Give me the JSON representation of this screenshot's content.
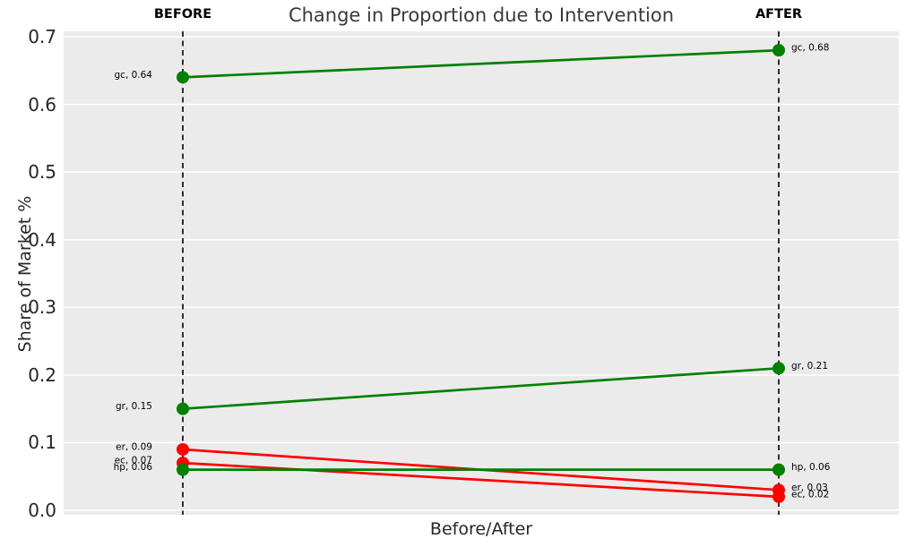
{
  "chart_data": {
    "type": "line",
    "variant": "slopegraph",
    "title": "Change in Proportion due to Intervention",
    "xlabel": "Before/After",
    "ylabel": "Share of Market %",
    "columns": [
      {
        "label": "BEFORE"
      },
      {
        "label": "AFTER"
      }
    ],
    "ylim": [
      0.0,
      0.7
    ],
    "yticks": [
      {
        "value": 0.0,
        "label": "0.0"
      },
      {
        "value": 0.1,
        "label": "0.1"
      },
      {
        "value": 0.2,
        "label": "0.2"
      },
      {
        "value": 0.3,
        "label": "0.3"
      },
      {
        "value": 0.4,
        "label": "0.4"
      },
      {
        "value": 0.5,
        "label": "0.5"
      },
      {
        "value": 0.6,
        "label": "0.6"
      },
      {
        "value": 0.7,
        "label": "0.7"
      }
    ],
    "grid": true,
    "legend": false,
    "series": [
      {
        "name": "gc",
        "color": "#008000",
        "before": 0.64,
        "after": 0.68,
        "before_label": "gc, 0.64",
        "after_label": "gc, 0.68"
      },
      {
        "name": "gr",
        "color": "#008000",
        "before": 0.15,
        "after": 0.21,
        "before_label": "gr, 0.15",
        "after_label": "gr, 0.21"
      },
      {
        "name": "er",
        "color": "#ff0000",
        "before": 0.09,
        "after": 0.03,
        "before_label": "er, 0.09",
        "after_label": "er, 0.03"
      },
      {
        "name": "ec",
        "color": "#ff0000",
        "before": 0.07,
        "after": 0.02,
        "before_label": "ec, 0.07",
        "after_label": "ec, 0.02"
      },
      {
        "name": "hp",
        "color": "#008000",
        "before": 0.06,
        "after": 0.06,
        "before_label": "hp, 0.06",
        "after_label": "hp, 0.06"
      }
    ],
    "colors": {
      "plot_background": "#ebebeb",
      "gridline": "#ffffff",
      "reference_line": "#000000",
      "increase": "#008000",
      "decrease": "#ff0000"
    }
  }
}
